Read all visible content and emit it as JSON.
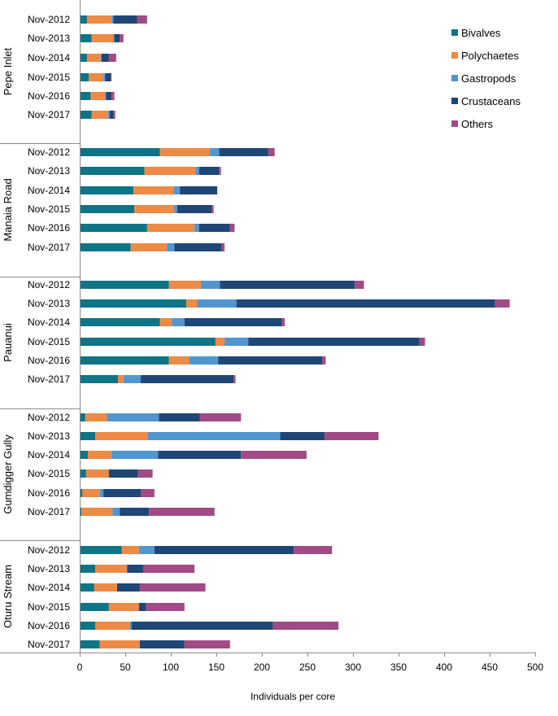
{
  "chart_data": {
    "type": "bar",
    "orientation": "horizontal",
    "stacked": true,
    "title": "",
    "xlabel": "Individuals  per core",
    "ylabel": "",
    "xlim": [
      0,
      500
    ],
    "xticks": [
      0,
      50,
      100,
      150,
      200,
      250,
      300,
      350,
      400,
      450,
      500
    ],
    "grid": false,
    "legend_position": "top-right",
    "series": [
      {
        "name": "Bivalves",
        "color": "#0e7486"
      },
      {
        "name": "Polychaetes",
        "color": "#ed8a46"
      },
      {
        "name": "Gastropods",
        "color": "#5196cf"
      },
      {
        "name": "Crustaceans",
        "color": "#1e4676"
      },
      {
        "name": "Others",
        "color": "#a24a86"
      }
    ],
    "groups": [
      {
        "name": "Pepe Inlet",
        "rows": [
          {
            "label": "Nov-2012",
            "values": [
              8,
              27,
              2,
              26,
              11
            ]
          },
          {
            "label": "Nov-2013",
            "values": [
              13,
              24,
              1,
              6,
              4
            ]
          },
          {
            "label": "Nov-2014",
            "values": [
              8,
              15,
              1,
              8,
              8
            ]
          },
          {
            "label": "Nov-2015",
            "values": [
              10,
              16,
              2,
              6,
              1
            ]
          },
          {
            "label": "Nov-2016",
            "values": [
              12,
              16,
              1,
              6,
              3
            ]
          },
          {
            "label": "Nov-2017",
            "values": [
              13,
              18,
              2,
              4,
              2
            ]
          }
        ]
      },
      {
        "name": "Manaia Road",
        "rows": [
          {
            "label": "Nov-2012",
            "values": [
              88,
              55,
              10,
              54,
              7
            ]
          },
          {
            "label": "Nov-2013",
            "values": [
              71,
              56,
              4,
              22,
              2
            ]
          },
          {
            "label": "Nov-2014",
            "values": [
              59,
              44,
              7,
              41,
              0
            ]
          },
          {
            "label": "Nov-2015",
            "values": [
              60,
              44,
              3,
              38,
              2
            ]
          },
          {
            "label": "Nov-2016",
            "values": [
              74,
              52,
              5,
              34,
              5
            ]
          },
          {
            "label": "Nov-2017",
            "values": [
              56,
              40,
              8,
              52,
              3
            ]
          }
        ]
      },
      {
        "name": "Pauanui",
        "rows": [
          {
            "label": "Nov-2012",
            "values": [
              98,
              35,
              21,
              148,
              10
            ]
          },
          {
            "label": "Nov-2013",
            "values": [
              117,
              12,
              43,
              284,
              16
            ]
          },
          {
            "label": "Nov-2014",
            "values": [
              88,
              13,
              14,
              107,
              3
            ]
          },
          {
            "label": "Nov-2015",
            "values": [
              149,
              10,
              26,
              188,
              6
            ]
          },
          {
            "label": "Nov-2016",
            "values": [
              98,
              22,
              32,
              114,
              4
            ]
          },
          {
            "label": "Nov-2017",
            "values": [
              42,
              6,
              19,
              102,
              2
            ]
          }
        ]
      },
      {
        "name": "Gumdigger Gully",
        "rows": [
          {
            "label": "Nov-2012",
            "values": [
              6,
              24,
              57,
              45,
              45
            ]
          },
          {
            "label": "Nov-2013",
            "values": [
              17,
              58,
              145,
              49,
              59
            ]
          },
          {
            "label": "Nov-2014",
            "values": [
              9,
              26,
              51,
              91,
              72
            ]
          },
          {
            "label": "Nov-2015",
            "values": [
              7,
              25,
              0,
              32,
              16
            ]
          },
          {
            "label": "Nov-2016",
            "values": [
              3,
              19,
              4,
              41,
              15
            ]
          },
          {
            "label": "Nov-2017",
            "values": [
              2,
              34,
              8,
              32,
              72
            ]
          }
        ]
      },
      {
        "name": "Oturu Stream",
        "rows": [
          {
            "label": "Nov-2012",
            "values": [
              46,
              19,
              17,
              153,
              42
            ]
          },
          {
            "label": "Nov-2013",
            "values": [
              17,
              35,
              0,
              18,
              56
            ]
          },
          {
            "label": "Nov-2014",
            "values": [
              16,
              25,
              0,
              25,
              72
            ]
          },
          {
            "label": "Nov-2015",
            "values": [
              32,
              33,
              0,
              8,
              42
            ]
          },
          {
            "label": "Nov-2016",
            "values": [
              17,
              38,
              2,
              155,
              72
            ]
          },
          {
            "label": "Nov-2017",
            "values": [
              22,
              44,
              0,
              49,
              50
            ]
          }
        ]
      }
    ]
  }
}
